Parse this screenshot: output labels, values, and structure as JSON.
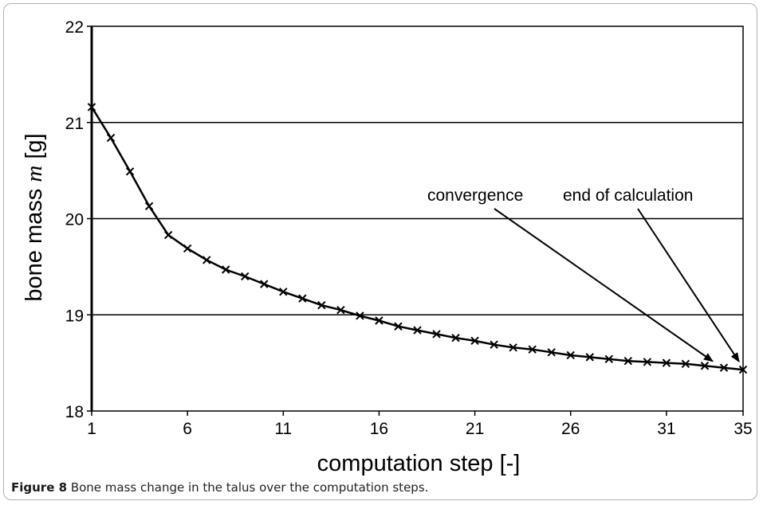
{
  "caption": {
    "label": "Figure 8",
    "text": "Bone mass change in the talus over the computation steps."
  },
  "chart_data": {
    "type": "line",
    "xlabel": "computation step [-]",
    "ylabel_prefix": "bone mass ",
    "ylabel_var": "m",
    "ylabel_suffix": " [g]",
    "xlim": [
      1,
      35
    ],
    "ylim": [
      18,
      22
    ],
    "xticks": [
      1,
      6,
      11,
      16,
      21,
      26,
      31,
      35
    ],
    "yticks": [
      18,
      19,
      20,
      21,
      22
    ],
    "grid": "horizontal",
    "marker": "x",
    "series": [
      {
        "x": [
          1,
          2,
          3,
          4,
          5,
          6,
          7,
          8,
          9,
          10,
          11,
          12,
          13,
          14,
          15,
          16,
          17,
          18,
          19,
          20,
          21,
          22,
          23,
          24,
          25,
          26,
          27,
          28,
          29,
          30,
          31,
          32,
          33,
          34,
          35
        ],
        "y": [
          21.16,
          20.84,
          20.49,
          20.13,
          19.83,
          19.69,
          19.57,
          19.47,
          19.4,
          19.32,
          19.24,
          19.17,
          19.1,
          19.05,
          18.99,
          18.94,
          18.88,
          18.84,
          18.8,
          18.76,
          18.73,
          18.69,
          18.66,
          18.64,
          18.61,
          18.58,
          18.56,
          18.54,
          18.52,
          18.51,
          18.5,
          18.49,
          18.47,
          18.45,
          18.43
        ]
      }
    ],
    "annotations": [
      {
        "text": "convergence",
        "points_to": [
          34,
          18.45
        ]
      },
      {
        "text": "end of calculation",
        "points_to": [
          35,
          18.43
        ]
      }
    ]
  }
}
